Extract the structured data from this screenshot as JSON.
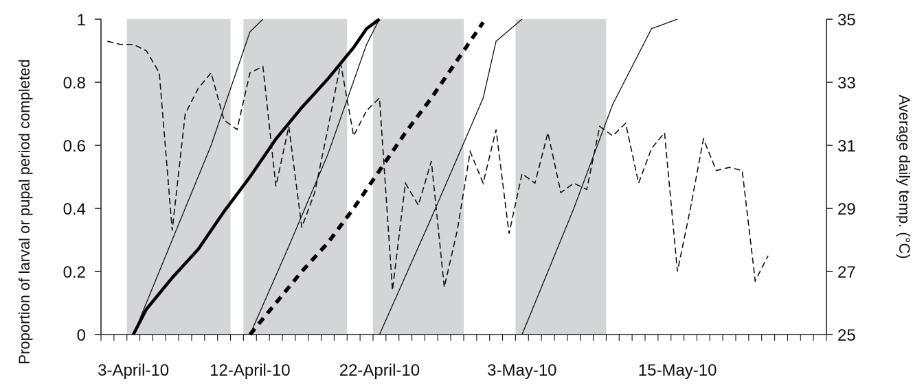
{
  "chart_data": {
    "type": "line",
    "x_axis": {
      "start_date": "2010-04-01",
      "end_date": "2010-05-26",
      "tick_labels": [
        {
          "date": "2010-04-03",
          "label": "3-April-10"
        },
        {
          "date": "2010-04-12",
          "label": "12-April-10"
        },
        {
          "date": "2010-04-22",
          "label": "22-April-10"
        },
        {
          "date": "2010-05-03",
          "label": "3-May-10"
        },
        {
          "date": "2010-05-15",
          "label": "15-May-10"
        }
      ]
    },
    "y_left": {
      "label": "Proportion of larval or pupal period completed",
      "ylim": [
        0,
        1
      ],
      "ticks": [
        "0",
        "0.2",
        "0.4",
        "0.6",
        "0.8",
        "1"
      ]
    },
    "y_right": {
      "label": "Average daily temp. (°C)",
      "ylim": [
        25,
        35
      ],
      "ticks": [
        "25",
        "27",
        "29",
        "31",
        "33",
        "35"
      ]
    },
    "shaded_periods": [
      {
        "start": "2010-04-03",
        "end": "2010-04-10"
      },
      {
        "start": "2010-04-12",
        "end": "2010-04-19"
      },
      {
        "start": "2010-04-22",
        "end": "2010-04-28"
      },
      {
        "start": "2010-05-03",
        "end": "2010-05-09"
      }
    ],
    "series": [
      {
        "axis": "left",
        "style": "thin",
        "points": [
          [
            "2010-04-03",
            0
          ],
          [
            "2010-04-06",
            0.3
          ],
          [
            "2010-04-09",
            0.6
          ],
          [
            "2010-04-12",
            0.96
          ],
          [
            "2010-04-13",
            1
          ]
        ]
      },
      {
        "axis": "left",
        "style": "thin",
        "points": [
          [
            "2010-04-12",
            0
          ],
          [
            "2010-04-15",
            0.28
          ],
          [
            "2010-04-18",
            0.57
          ],
          [
            "2010-04-21",
            0.92
          ],
          [
            "2010-04-22",
            1
          ]
        ]
      },
      {
        "axis": "left",
        "style": "thin",
        "points": [
          [
            "2010-04-22",
            0
          ],
          [
            "2010-04-26",
            0.37
          ],
          [
            "2010-04-30",
            0.75
          ],
          [
            "2010-05-01",
            0.93
          ],
          [
            "2010-05-03",
            1
          ]
        ]
      },
      {
        "axis": "left",
        "style": "thin",
        "points": [
          [
            "2010-05-03",
            0
          ],
          [
            "2010-05-07",
            0.4
          ],
          [
            "2010-05-10",
            0.73
          ],
          [
            "2010-05-13",
            0.97
          ],
          [
            "2010-05-15",
            1
          ]
        ]
      },
      {
        "axis": "left",
        "style": "thick-solid",
        "points": [
          [
            "2010-04-03",
            0
          ],
          [
            "2010-04-04",
            0.08
          ],
          [
            "2010-04-06",
            0.18
          ],
          [
            "2010-04-08",
            0.27
          ],
          [
            "2010-04-10",
            0.39
          ],
          [
            "2010-04-12",
            0.5
          ],
          [
            "2010-04-14",
            0.62
          ],
          [
            "2010-04-16",
            0.72
          ],
          [
            "2010-04-18",
            0.81
          ],
          [
            "2010-04-20",
            0.91
          ],
          [
            "2010-04-21",
            0.97
          ],
          [
            "2010-04-22",
            1
          ]
        ]
      },
      {
        "axis": "left",
        "style": "thick-dashed",
        "points": [
          [
            "2010-04-12",
            0
          ],
          [
            "2010-04-14",
            0.1
          ],
          [
            "2010-04-16",
            0.2
          ],
          [
            "2010-04-18",
            0.29
          ],
          [
            "2010-04-20",
            0.4
          ],
          [
            "2010-04-22",
            0.52
          ],
          [
            "2010-04-24",
            0.64
          ],
          [
            "2010-04-26",
            0.75
          ],
          [
            "2010-04-28",
            0.87
          ],
          [
            "2010-04-30",
            0.99
          ]
        ]
      },
      {
        "axis": "right",
        "style": "dashed",
        "points": [
          [
            "2010-04-01",
            34.3
          ],
          [
            "2010-04-02",
            34.2
          ],
          [
            "2010-04-03",
            34.2
          ],
          [
            "2010-04-04",
            34.0
          ],
          [
            "2010-04-05",
            33.3
          ],
          [
            "2010-04-06",
            28.3
          ],
          [
            "2010-04-07",
            32.0
          ],
          [
            "2010-04-08",
            32.8
          ],
          [
            "2010-04-09",
            33.3
          ],
          [
            "2010-04-10",
            31.8
          ],
          [
            "2010-04-11",
            31.5
          ],
          [
            "2010-04-12",
            33.3
          ],
          [
            "2010-04-13",
            33.5
          ],
          [
            "2010-04-14",
            29.7
          ],
          [
            "2010-04-15",
            31.6
          ],
          [
            "2010-04-16",
            28.4
          ],
          [
            "2010-04-17",
            29.5
          ],
          [
            "2010-04-18",
            31.5
          ],
          [
            "2010-04-19",
            33.6
          ],
          [
            "2010-04-20",
            31.3
          ],
          [
            "2010-04-21",
            32.1
          ],
          [
            "2010-04-22",
            32.5
          ],
          [
            "2010-04-23",
            26.4
          ],
          [
            "2010-04-24",
            29.8
          ],
          [
            "2010-04-25",
            29.1
          ],
          [
            "2010-04-26",
            30.5
          ],
          [
            "2010-04-27",
            26.5
          ],
          [
            "2010-04-28",
            28.3
          ],
          [
            "2010-04-29",
            30.8
          ],
          [
            "2010-04-30",
            29.8
          ],
          [
            "2010-05-01",
            31.5
          ],
          [
            "2010-05-02",
            28.2
          ],
          [
            "2010-05-03",
            30.1
          ],
          [
            "2010-05-04",
            29.8
          ],
          [
            "2010-05-05",
            31.4
          ],
          [
            "2010-05-06",
            29.5
          ],
          [
            "2010-05-07",
            29.8
          ],
          [
            "2010-05-08",
            29.6
          ],
          [
            "2010-05-09",
            31.6
          ],
          [
            "2010-05-10",
            31.3
          ],
          [
            "2010-05-11",
            31.7
          ],
          [
            "2010-05-12",
            29.8
          ],
          [
            "2010-05-13",
            30.9
          ],
          [
            "2010-05-14",
            31.4
          ],
          [
            "2010-05-15",
            27.0
          ],
          [
            "2010-05-16",
            29.0
          ],
          [
            "2010-05-17",
            31.2
          ],
          [
            "2010-05-18",
            30.2
          ],
          [
            "2010-05-19",
            30.3
          ],
          [
            "2010-05-20",
            30.2
          ],
          [
            "2010-05-21",
            26.7
          ],
          [
            "2010-05-22",
            27.5
          ]
        ]
      }
    ],
    "grid": false,
    "legend": "none"
  }
}
